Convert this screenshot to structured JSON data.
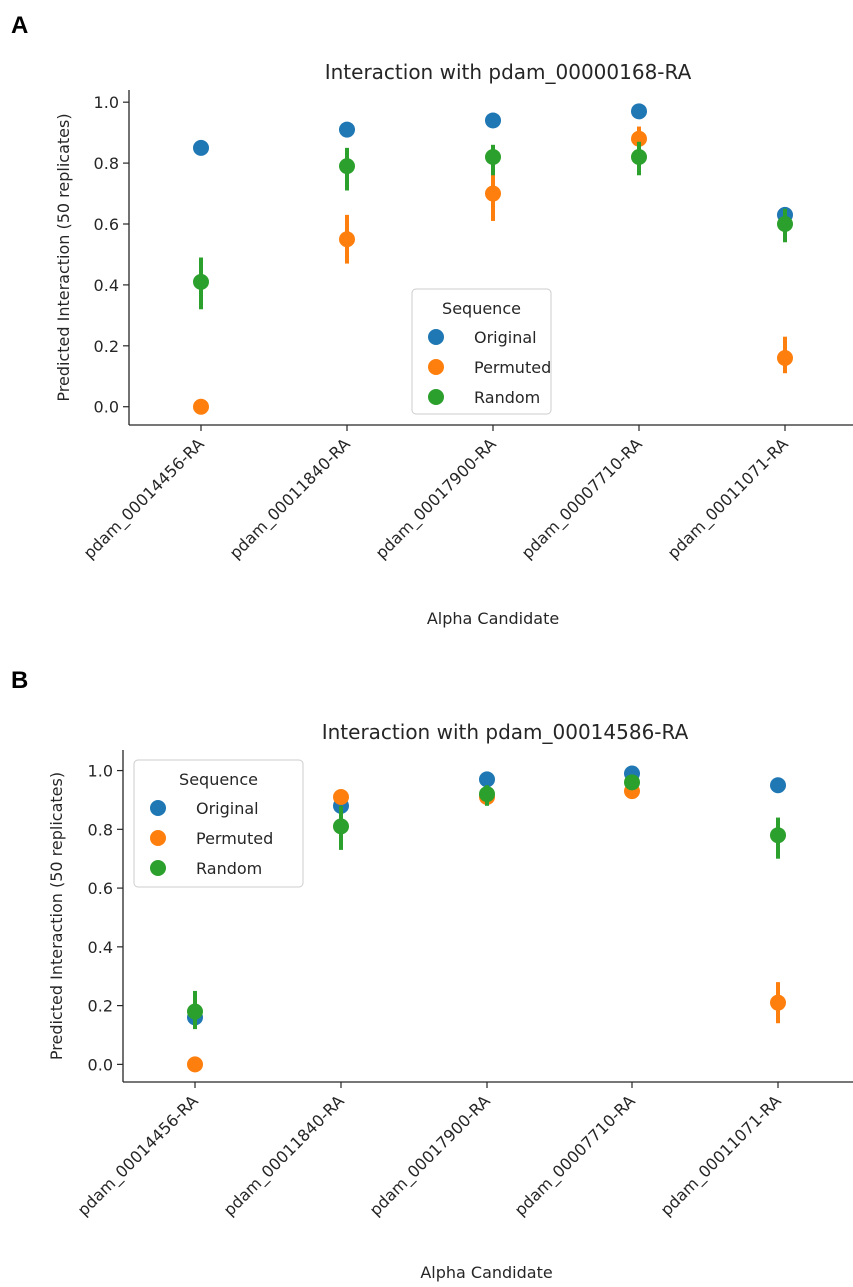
{
  "panels": [
    {
      "letter": "A"
    },
    {
      "letter": "B"
    }
  ],
  "colors": {
    "Original": "#1f77b4",
    "Permuted": "#ff7f0e",
    "Random": "#2ca02c",
    "axis": "#262626"
  },
  "chart_data": [
    {
      "type": "scatter",
      "title": "Interaction with pdam_00000168-RA",
      "xlabel": "Alpha Candidate",
      "ylabel": "Predicted Interaction (50 replicates)",
      "categories": [
        "pdam_00014456-RA",
        "pdam_00011840-RA",
        "pdam_00017900-RA",
        "pdam_00007710-RA",
        "pdam_00011071-RA"
      ],
      "yticks": [
        "0.0",
        "0.2",
        "0.4",
        "0.6",
        "0.8",
        "1.0"
      ],
      "ylim": [
        -0.06,
        1.04
      ],
      "legend": {
        "title": "Sequence",
        "placement": "lower-center"
      },
      "series": [
        {
          "name": "Original",
          "values": [
            0.85,
            0.91,
            0.94,
            0.97,
            0.63
          ],
          "err_low": [
            0.85,
            0.91,
            0.94,
            0.97,
            0.63
          ],
          "err_high": [
            0.85,
            0.91,
            0.94,
            0.97,
            0.63
          ]
        },
        {
          "name": "Permuted",
          "values": [
            0.0,
            0.55,
            0.7,
            0.88,
            0.16
          ],
          "err_low": [
            0.0,
            0.47,
            0.61,
            0.84,
            0.11
          ],
          "err_high": [
            0.0,
            0.63,
            0.79,
            0.92,
            0.23
          ]
        },
        {
          "name": "Random",
          "values": [
            0.41,
            0.79,
            0.82,
            0.82,
            0.6
          ],
          "err_low": [
            0.32,
            0.71,
            0.76,
            0.76,
            0.54
          ],
          "err_high": [
            0.49,
            0.85,
            0.86,
            0.87,
            0.65
          ]
        }
      ]
    },
    {
      "type": "scatter",
      "title": "Interaction with pdam_00014586-RA",
      "xlabel": "Alpha Candidate",
      "ylabel": "Predicted Interaction (50 replicates)",
      "categories": [
        "pdam_00014456-RA",
        "pdam_00011840-RA",
        "pdam_00017900-RA",
        "pdam_00007710-RA",
        "pdam_00011071-RA"
      ],
      "yticks": [
        "0.0",
        "0.2",
        "0.4",
        "0.6",
        "0.8",
        "1.0"
      ],
      "ylim": [
        -0.06,
        1.07
      ],
      "legend": {
        "title": "Sequence",
        "placement": "upper-left"
      },
      "series": [
        {
          "name": "Original",
          "values": [
            0.16,
            0.88,
            0.97,
            0.99,
            0.95
          ],
          "err_low": [
            0.16,
            0.88,
            0.97,
            0.99,
            0.95
          ],
          "err_high": [
            0.16,
            0.88,
            0.97,
            0.99,
            0.95
          ]
        },
        {
          "name": "Permuted",
          "values": [
            0.0,
            0.91,
            0.91,
            0.93,
            0.21
          ],
          "err_low": [
            0.0,
            0.91,
            0.89,
            0.92,
            0.14
          ],
          "err_high": [
            0.0,
            0.91,
            0.93,
            0.94,
            0.28
          ]
        },
        {
          "name": "Random",
          "values": [
            0.18,
            0.81,
            0.92,
            0.96,
            0.78
          ],
          "err_low": [
            0.12,
            0.73,
            0.88,
            0.94,
            0.7
          ],
          "err_high": [
            0.25,
            0.88,
            0.95,
            0.98,
            0.84
          ]
        }
      ]
    }
  ]
}
